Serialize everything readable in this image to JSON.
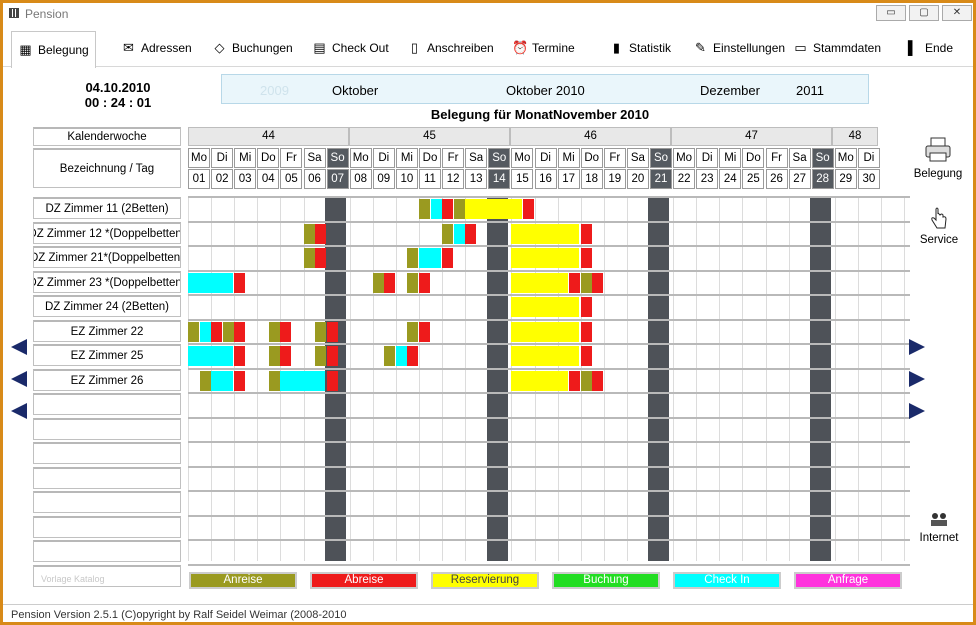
{
  "window": {
    "title": "Pension",
    "btn_min": "▭",
    "btn_max": "▢",
    "btn_close": "✕"
  },
  "toolbar": {
    "items": [
      {
        "label": "Belegung",
        "icon": "calendar-grid-icon"
      },
      {
        "label": "Adressen",
        "icon": "address-book-icon"
      },
      {
        "label": "Buchungen",
        "icon": "tag-icon"
      },
      {
        "label": "Check Out",
        "icon": "checklist-icon"
      },
      {
        "label": "Anschreiben",
        "icon": "document-icon"
      },
      {
        "label": "Termine",
        "icon": "alarm-clock-icon"
      },
      {
        "label": "Statistik",
        "icon": "bar-chart-icon"
      },
      {
        "label": "Einstellungen",
        "icon": "settings-icon"
      },
      {
        "label": "Stammdaten",
        "icon": "clipboard-icon"
      },
      {
        "label": "Ende",
        "icon": "exit-door-icon"
      }
    ]
  },
  "current": {
    "date": "04.10.2010",
    "time": "00 : 24 : 01"
  },
  "month_nav": {
    "prev_year": "2009",
    "prev_month": "Oktober",
    "current": "Oktober 2010",
    "next_month": "Dezember",
    "next_year": "2011"
  },
  "heading": "Belegung für MonatNovember 2010",
  "labels": {
    "week": "Kalenderwoche",
    "room": "Bezeichnung / Tag"
  },
  "weeks": [
    "44",
    "45",
    "46",
    "47",
    "48"
  ],
  "days": [
    {
      "n": "Mo",
      "d": "01"
    },
    {
      "n": "Di",
      "d": "02"
    },
    {
      "n": "Mi",
      "d": "03"
    },
    {
      "n": "Do",
      "d": "04"
    },
    {
      "n": "Fr",
      "d": "05"
    },
    {
      "n": "Sa",
      "d": "06"
    },
    {
      "n": "So",
      "d": "07"
    },
    {
      "n": "Mo",
      "d": "08"
    },
    {
      "n": "Di",
      "d": "09"
    },
    {
      "n": "Mi",
      "d": "10"
    },
    {
      "n": "Do",
      "d": "11"
    },
    {
      "n": "Fr",
      "d": "12"
    },
    {
      "n": "Sa",
      "d": "13"
    },
    {
      "n": "So",
      "d": "14"
    },
    {
      "n": "Mo",
      "d": "15"
    },
    {
      "n": "Di",
      "d": "16"
    },
    {
      "n": "Mi",
      "d": "17"
    },
    {
      "n": "Do",
      "d": "18"
    },
    {
      "n": "Fr",
      "d": "19"
    },
    {
      "n": "Sa",
      "d": "20"
    },
    {
      "n": "So",
      "d": "21"
    },
    {
      "n": "Mo",
      "d": "22"
    },
    {
      "n": "Di",
      "d": "23"
    },
    {
      "n": "Mi",
      "d": "24"
    },
    {
      "n": "Do",
      "d": "25"
    },
    {
      "n": "Fr",
      "d": "26"
    },
    {
      "n": "Sa",
      "d": "27"
    },
    {
      "n": "So",
      "d": "28"
    },
    {
      "n": "Mo",
      "d": "29"
    },
    {
      "n": "Di",
      "d": "30"
    }
  ],
  "rooms": [
    "DZ Zimmer 11 (2Betten)",
    "DZ Zimmer 12 *(Doppelbetten)",
    "DZ Zimmer 21*(Doppelbetten)",
    "DZ Zimmer 23 *(Doppelbetten)",
    "DZ Zimmer 24 (2Betten)",
    "EZ Zimmer 22",
    "EZ Zimmer 25",
    "EZ Zimmer 26",
    "",
    "",
    "",
    "",
    "",
    "",
    "",
    ""
  ],
  "bookings": [
    {
      "row": 0,
      "start": 20,
      "len": 1,
      "type": "anreise"
    },
    {
      "row": 0,
      "start": 21,
      "len": 1,
      "type": "checkin"
    },
    {
      "row": 0,
      "start": 22,
      "len": 1,
      "type": "abreise"
    },
    {
      "row": 0,
      "start": 23,
      "len": 1,
      "type": "anreise"
    },
    {
      "row": 0,
      "start": 24,
      "len": 5,
      "type": "reservierung"
    },
    {
      "row": 0,
      "start": 29,
      "len": 1,
      "type": "abreise"
    },
    {
      "row": 1,
      "start": 10,
      "len": 1,
      "type": "anreise"
    },
    {
      "row": 1,
      "start": 11,
      "len": 1,
      "type": "abreise"
    },
    {
      "row": 1,
      "start": 22,
      "len": 1,
      "type": "anreise"
    },
    {
      "row": 1,
      "start": 23,
      "len": 1,
      "type": "checkin"
    },
    {
      "row": 1,
      "start": 24,
      "len": 1,
      "type": "abreise"
    },
    {
      "row": 1,
      "start": 28,
      "len": 6,
      "type": "reservierung"
    },
    {
      "row": 1,
      "start": 34,
      "len": 1,
      "type": "abreise"
    },
    {
      "row": 2,
      "start": 10,
      "len": 1,
      "type": "anreise"
    },
    {
      "row": 2,
      "start": 11,
      "len": 1,
      "type": "abreise"
    },
    {
      "row": 2,
      "start": 19,
      "len": 1,
      "type": "anreise"
    },
    {
      "row": 2,
      "start": 20,
      "len": 2,
      "type": "checkin"
    },
    {
      "row": 2,
      "start": 22,
      "len": 1,
      "type": "abreise"
    },
    {
      "row": 2,
      "start": 28,
      "len": 6,
      "type": "reservierung"
    },
    {
      "row": 2,
      "start": 34,
      "len": 1,
      "type": "abreise"
    },
    {
      "row": 3,
      "start": 0,
      "len": 4,
      "type": "checkin"
    },
    {
      "row": 3,
      "start": 4,
      "len": 1,
      "type": "abreise"
    },
    {
      "row": 3,
      "start": 16,
      "len": 1,
      "type": "anreise"
    },
    {
      "row": 3,
      "start": 17,
      "len": 1,
      "type": "abreise"
    },
    {
      "row": 3,
      "start": 19,
      "len": 1,
      "type": "anreise"
    },
    {
      "row": 3,
      "start": 20,
      "len": 1,
      "type": "abreise"
    },
    {
      "row": 3,
      "start": 28,
      "len": 5,
      "type": "reservierung"
    },
    {
      "row": 3,
      "start": 33,
      "len": 1,
      "type": "abreise"
    },
    {
      "row": 3,
      "start": 34,
      "len": 1,
      "type": "anreise"
    },
    {
      "row": 3,
      "start": 35,
      "len": 1,
      "type": "abreise"
    },
    {
      "row": 4,
      "start": 28,
      "len": 6,
      "type": "reservierung"
    },
    {
      "row": 4,
      "start": 34,
      "len": 1,
      "type": "abreise"
    },
    {
      "row": 5,
      "start": 0,
      "len": 1,
      "type": "anreise"
    },
    {
      "row": 5,
      "start": 1,
      "len": 1,
      "type": "checkin"
    },
    {
      "row": 5,
      "start": 2,
      "len": 1,
      "type": "abreise"
    },
    {
      "row": 5,
      "start": 3,
      "len": 1,
      "type": "anreise"
    },
    {
      "row": 5,
      "start": 4,
      "len": 1,
      "type": "abreise"
    },
    {
      "row": 5,
      "start": 7,
      "len": 1,
      "type": "anreise"
    },
    {
      "row": 5,
      "start": 8,
      "len": 1,
      "type": "abreise"
    },
    {
      "row": 5,
      "start": 11,
      "len": 1,
      "type": "anreise"
    },
    {
      "row": 5,
      "start": 12,
      "len": 1,
      "type": "abreise"
    },
    {
      "row": 5,
      "start": 19,
      "len": 1,
      "type": "anreise"
    },
    {
      "row": 5,
      "start": 20,
      "len": 1,
      "type": "abreise"
    },
    {
      "row": 5,
      "start": 28,
      "len": 6,
      "type": "reservierung"
    },
    {
      "row": 5,
      "start": 34,
      "len": 1,
      "type": "abreise"
    },
    {
      "row": 6,
      "start": 0,
      "len": 4,
      "type": "checkin"
    },
    {
      "row": 6,
      "start": 4,
      "len": 1,
      "type": "abreise"
    },
    {
      "row": 6,
      "start": 7,
      "len": 1,
      "type": "anreise"
    },
    {
      "row": 6,
      "start": 8,
      "len": 1,
      "type": "abreise"
    },
    {
      "row": 6,
      "start": 11,
      "len": 1,
      "type": "anreise"
    },
    {
      "row": 6,
      "start": 12,
      "len": 1,
      "type": "abreise"
    },
    {
      "row": 6,
      "start": 17,
      "len": 1,
      "type": "anreise"
    },
    {
      "row": 6,
      "start": 18,
      "len": 1,
      "type": "checkin"
    },
    {
      "row": 6,
      "start": 19,
      "len": 1,
      "type": "abreise"
    },
    {
      "row": 6,
      "start": 28,
      "len": 6,
      "type": "reservierung"
    },
    {
      "row": 6,
      "start": 34,
      "len": 1,
      "type": "abreise"
    },
    {
      "row": 7,
      "start": 1,
      "len": 1,
      "type": "anreise"
    },
    {
      "row": 7,
      "start": 2,
      "len": 2,
      "type": "checkin"
    },
    {
      "row": 7,
      "start": 4,
      "len": 1,
      "type": "abreise"
    },
    {
      "row": 7,
      "start": 7,
      "len": 1,
      "type": "anreise"
    },
    {
      "row": 7,
      "start": 8,
      "len": 4,
      "type": "checkin"
    },
    {
      "row": 7,
      "start": 12,
      "len": 1,
      "type": "abreise"
    },
    {
      "row": 7,
      "start": 28,
      "len": 5,
      "type": "reservierung"
    },
    {
      "row": 7,
      "start": 33,
      "len": 1,
      "type": "abreise"
    },
    {
      "row": 7,
      "start": 34,
      "len": 1,
      "type": "anreise"
    },
    {
      "row": 7,
      "start": 35,
      "len": 1,
      "type": "abreise"
    }
  ],
  "legend": [
    {
      "label": "Anreise",
      "color": "#9a9a20"
    },
    {
      "label": "Abreise",
      "color": "#ee1b1b"
    },
    {
      "label": "Reservierung",
      "color": "#ffff00"
    },
    {
      "label": "Buchung",
      "color": "#22dd22"
    },
    {
      "label": "Check In",
      "color": "#00ffff"
    },
    {
      "label": "Anfrage",
      "color": "#ff33dd"
    }
  ],
  "colors": {
    "anreise": "#9a9a20",
    "abreise": "#ee1b1b",
    "reservierung": "#ffff00",
    "checkin": "#00ffff",
    "sunday": "#4e5258"
  },
  "side": {
    "belegung": "Belegung",
    "service": "Service",
    "internet": "Internet"
  },
  "faint_label": "Vorlage Katalog",
  "status": "Pension      Version 2.5.1  (C)opyright by Ralf Seidel Weimar (2008-2010"
}
